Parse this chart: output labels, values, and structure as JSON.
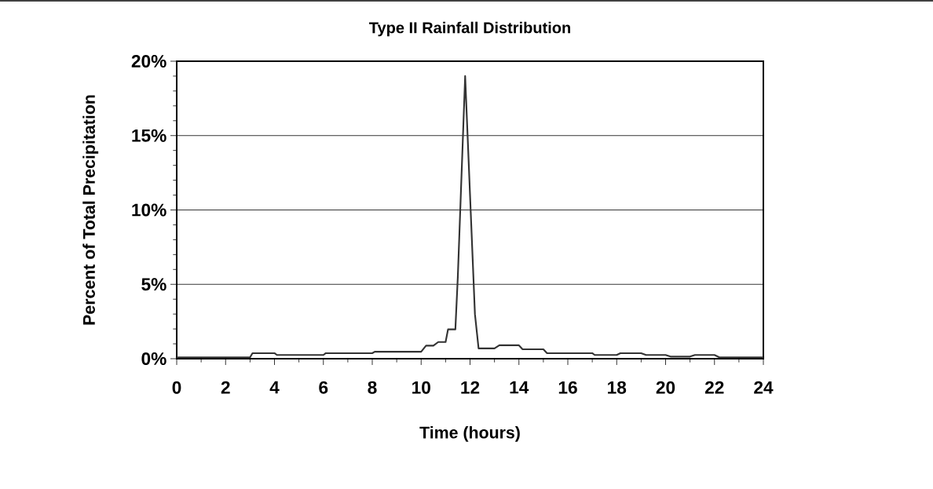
{
  "chart_data": {
    "type": "line",
    "title": "Type II Rainfall Distribution",
    "xlabel": "Time (hours)",
    "ylabel": "Percent of Total Precipitation",
    "series": [
      {
        "color": "#333333",
        "x": [
          0,
          3.0,
          3.1,
          4.0,
          4.1,
          6.0,
          6.1,
          8.0,
          8.1,
          10.0,
          10.2,
          10.5,
          10.7,
          11.0,
          11.1,
          11.4,
          11.5,
          11.8,
          12.2,
          12.35,
          13.0,
          13.2,
          14.0,
          14.15,
          15.0,
          15.15,
          17.0,
          17.1,
          18.0,
          18.15,
          19.0,
          19.2,
          20.0,
          20.2,
          21.0,
          21.2,
          22.0,
          22.2,
          24
        ],
        "values": [
          0.09,
          0.09,
          0.37,
          0.37,
          0.25,
          0.25,
          0.37,
          0.37,
          0.47,
          0.47,
          0.88,
          0.88,
          1.12,
          1.12,
          1.97,
          1.97,
          5.5,
          19.0,
          3.0,
          0.69,
          0.69,
          0.9,
          0.9,
          0.63,
          0.63,
          0.37,
          0.37,
          0.25,
          0.25,
          0.37,
          0.37,
          0.25,
          0.25,
          0.14,
          0.14,
          0.25,
          0.25,
          0.09,
          0.09
        ]
      }
    ],
    "xlim": [
      0,
      24
    ],
    "xticks": [
      0,
      2,
      4,
      6,
      8,
      10,
      12,
      14,
      16,
      18,
      20,
      22,
      24
    ],
    "ylim": [
      0,
      20
    ],
    "yticks": [
      {
        "value": 0,
        "label": "0%"
      },
      {
        "value": 5,
        "label": "5%"
      },
      {
        "value": 10,
        "label": "10%"
      },
      {
        "value": 15,
        "label": "15%"
      },
      {
        "value": 20,
        "label": "20%"
      }
    ],
    "grid": "y",
    "marker": "none",
    "line_style": "solid"
  }
}
